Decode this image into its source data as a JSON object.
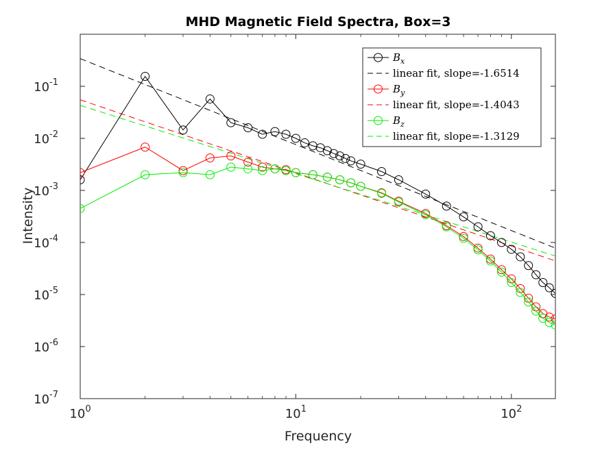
{
  "chart_data": {
    "type": "line",
    "title": "MHD Magnetic Field Spectra, Box=3",
    "xlabel": "Frequency",
    "ylabel": "Intensity",
    "xscale": "log",
    "yscale": "log",
    "xlim": [
      1,
      160
    ],
    "ylim": [
      1e-07,
      1
    ],
    "x_ticks": [
      {
        "value": 1,
        "base": "10",
        "exp": "0"
      },
      {
        "value": 10,
        "base": "10",
        "exp": "1"
      },
      {
        "value": 100,
        "base": "10",
        "exp": "2"
      }
    ],
    "y_ticks": [
      {
        "value": 1e-07,
        "base": "10",
        "exp": "-7"
      },
      {
        "value": 1e-06,
        "base": "10",
        "exp": "-6"
      },
      {
        "value": 1e-05,
        "base": "10",
        "exp": "-5"
      },
      {
        "value": 0.0001,
        "base": "10",
        "exp": "-4"
      },
      {
        "value": 0.001,
        "base": "10",
        "exp": "-3"
      },
      {
        "value": 0.01,
        "base": "10",
        "exp": "-2"
      },
      {
        "value": 0.1,
        "base": "10",
        "exp": "-1"
      }
    ],
    "legend_position": "top-right",
    "series": [
      {
        "key": "bx",
        "name_base": "B",
        "name_sub": "x",
        "color": "#000000",
        "marker": "circle",
        "points": [
          [
            1,
            0.0016
          ],
          [
            2,
            0.155
          ],
          [
            3,
            0.0145
          ],
          [
            4,
            0.057
          ],
          [
            5,
            0.02
          ],
          [
            6,
            0.016
          ],
          [
            7,
            0.012
          ],
          [
            8,
            0.0135
          ],
          [
            9,
            0.012
          ],
          [
            10,
            0.01
          ],
          [
            11,
            0.0082
          ],
          [
            12,
            0.0072
          ],
          [
            13,
            0.0066
          ],
          [
            14,
            0.0058
          ],
          [
            15,
            0.0051
          ],
          [
            16,
            0.0046
          ],
          [
            17,
            0.0041
          ],
          [
            18,
            0.0037
          ],
          [
            20,
            0.0032
          ],
          [
            25,
            0.0023
          ],
          [
            30,
            0.0016
          ],
          [
            40,
            0.00085
          ],
          [
            50,
            0.0005
          ],
          [
            60,
            0.00031
          ],
          [
            70,
            0.0002
          ],
          [
            80,
            0.000135
          ],
          [
            90,
            0.0001
          ],
          [
            100,
            7.4e-05
          ],
          [
            110,
            5.3e-05
          ],
          [
            120,
            3.6e-05
          ],
          [
            130,
            2.4e-05
          ],
          [
            140,
            1.7e-05
          ],
          [
            150,
            1.35e-05
          ],
          [
            160,
            1.05e-05
          ]
        ]
      },
      {
        "key": "bx_fit",
        "name": "linear fit, slope=-1.6514",
        "color": "#000000",
        "dashed": true,
        "fit": {
          "a": 0.34,
          "slope": -1.6514
        }
      },
      {
        "key": "by",
        "name_base": "B",
        "name_sub": "y",
        "color": "#ff0000",
        "marker": "circle",
        "points": [
          [
            1,
            0.0022
          ],
          [
            2,
            0.0068
          ],
          [
            3,
            0.0024
          ],
          [
            4,
            0.0042
          ],
          [
            5,
            0.0046
          ],
          [
            6,
            0.0035
          ],
          [
            7,
            0.0028
          ],
          [
            8,
            0.0026
          ],
          [
            9,
            0.0025
          ],
          [
            10,
            0.0022
          ],
          [
            12,
            0.002
          ],
          [
            14,
            0.0018
          ],
          [
            16,
            0.0016
          ],
          [
            18,
            0.0014
          ],
          [
            20,
            0.0012
          ],
          [
            25,
            0.0009
          ],
          [
            30,
            0.00062
          ],
          [
            40,
            0.00036
          ],
          [
            50,
            0.00021
          ],
          [
            60,
            0.00013
          ],
          [
            70,
            7.8e-05
          ],
          [
            80,
            4.8e-05
          ],
          [
            90,
            3e-05
          ],
          [
            100,
            2e-05
          ],
          [
            110,
            1.3e-05
          ],
          [
            120,
            8.5e-06
          ],
          [
            130,
            5.8e-06
          ],
          [
            140,
            4.3e-06
          ],
          [
            150,
            3.7e-06
          ],
          [
            160,
            3.4e-06
          ]
        ]
      },
      {
        "key": "by_fit",
        "name": "linear fit, slope=-1.4043",
        "color": "#ff0000",
        "dashed": true,
        "fit": {
          "a": 0.055,
          "slope": -1.4043
        }
      },
      {
        "key": "bz",
        "name_base": "B",
        "name_sub": "z",
        "color": "#00ee00",
        "marker": "circle",
        "points": [
          [
            1,
            0.00045
          ],
          [
            2,
            0.002
          ],
          [
            3,
            0.0022
          ],
          [
            4,
            0.002
          ],
          [
            5,
            0.0028
          ],
          [
            6,
            0.0026
          ],
          [
            7,
            0.0024
          ],
          [
            8,
            0.0026
          ],
          [
            9,
            0.0024
          ],
          [
            10,
            0.0022
          ],
          [
            12,
            0.002
          ],
          [
            14,
            0.0018
          ],
          [
            16,
            0.0016
          ],
          [
            18,
            0.0014
          ],
          [
            20,
            0.0012
          ],
          [
            25,
            0.00088
          ],
          [
            30,
            0.0006
          ],
          [
            40,
            0.00034
          ],
          [
            50,
            0.0002
          ],
          [
            60,
            0.00012
          ],
          [
            70,
            7.2e-05
          ],
          [
            80,
            4.4e-05
          ],
          [
            90,
            2.7e-05
          ],
          [
            100,
            1.7e-05
          ],
          [
            110,
            1.1e-05
          ],
          [
            120,
            7.2e-06
          ],
          [
            130,
            4.8e-06
          ],
          [
            140,
            3.5e-06
          ],
          [
            150,
            2.9e-06
          ],
          [
            160,
            2.6e-06
          ]
        ]
      },
      {
        "key": "bz_fit",
        "name": "linear fit, slope=-1.3129",
        "color": "#00ee00",
        "dashed": true,
        "fit": {
          "a": 0.043,
          "slope": -1.3129
        }
      }
    ]
  }
}
